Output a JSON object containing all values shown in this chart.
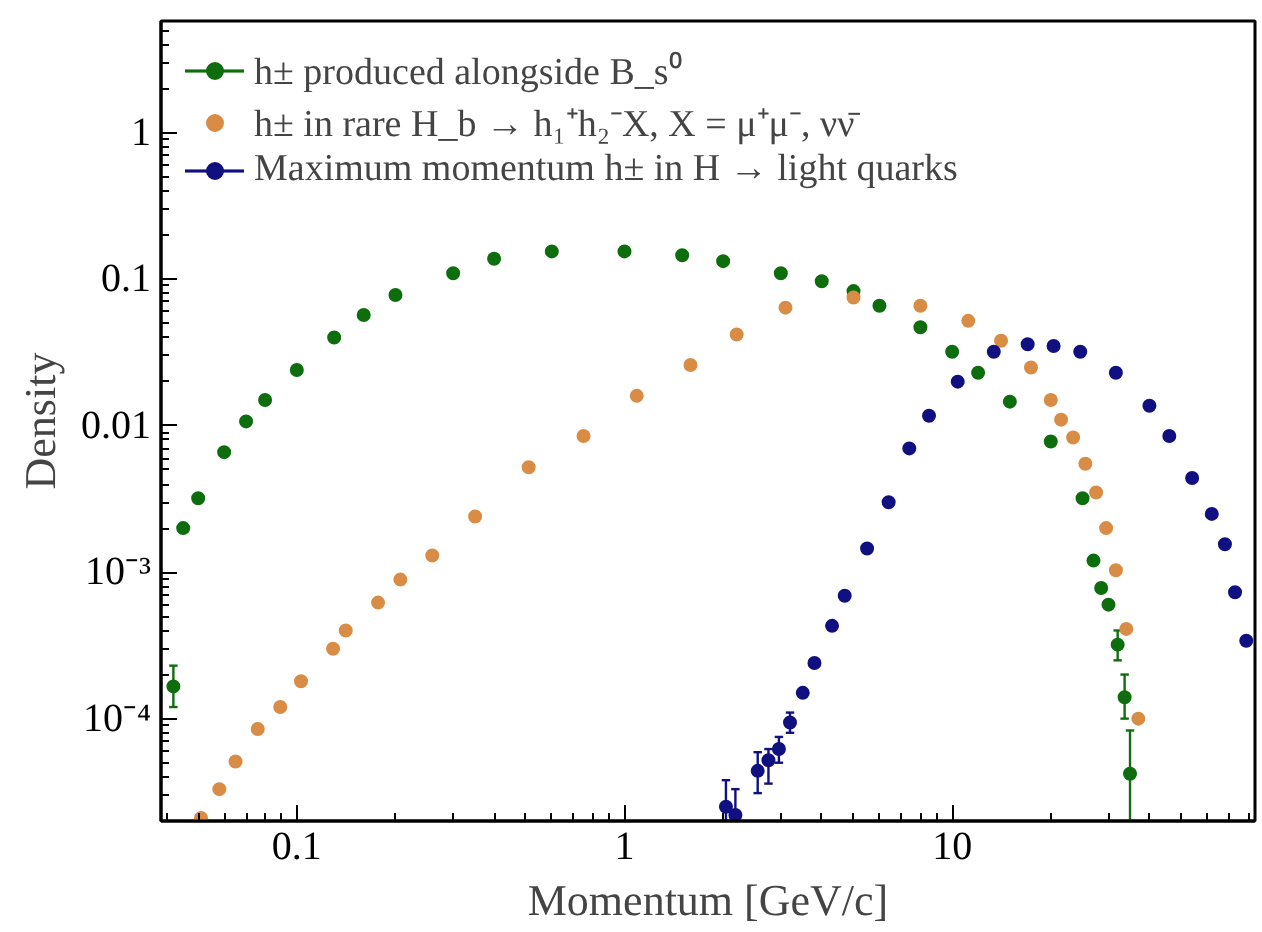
{
  "chart_data": {
    "type": "scatter",
    "xlabel": "Momentum [GeV/c]",
    "ylabel": "Density",
    "log": "xy",
    "legend": "top left",
    "marker": "circle",
    "grid": false,
    "xlim": [
      0.0385,
      84
    ],
    "ylim": [
      2e-05,
      5.8
    ],
    "xticks": [
      0.1,
      1,
      10
    ],
    "yticks": [
      {
        "value": 0.0001,
        "label": "10⁻⁴"
      },
      {
        "value": 0.001,
        "label": "10⁻³"
      },
      0.01,
      0.1,
      1
    ],
    "series": [
      {
        "name": "h± produced alongside B_s⁰",
        "color": "#0e6e0e",
        "x": [
          0.042,
          0.045,
          0.05,
          0.06,
          0.07,
          0.08,
          0.1,
          0.13,
          0.16,
          0.2,
          0.3,
          0.4,
          0.6,
          1.0,
          1.5,
          2,
          3,
          4,
          5,
          6,
          8,
          10,
          12,
          15,
          20,
          25,
          27,
          28.5,
          30,
          32,
          33.6,
          34.9
        ],
        "values": [
          0.000166,
          0.002,
          0.0032,
          0.0066,
          0.0107,
          0.015,
          0.024,
          0.04,
          0.057,
          0.078,
          0.11,
          0.138,
          0.155,
          0.155,
          0.146,
          0.133,
          0.11,
          0.097,
          0.083,
          0.066,
          0.047,
          0.032,
          0.023,
          0.0146,
          0.0078,
          0.0032,
          0.0012,
          0.00078,
          0.0006,
          0.00032,
          0.00014,
          4.2e-05
        ],
        "errors": [
          [
            0.00012,
            0.00023
          ],
          null,
          null,
          null,
          null,
          null,
          null,
          null,
          null,
          null,
          null,
          null,
          null,
          null,
          null,
          null,
          null,
          null,
          null,
          null,
          null,
          null,
          null,
          null,
          null,
          null,
          null,
          null,
          null,
          [
            0.00025,
            0.0004
          ],
          [
            0.0001,
            0.0002
          ],
          [
            2e-05,
            8.3e-05
          ]
        ]
      },
      {
        "name": "h± in rare H_b → h₁⁺h₂⁻X, X = μ⁺μ⁻, νν̄",
        "color": "#d98c45",
        "x": [
          0.051,
          0.058,
          0.065,
          0.076,
          0.089,
          0.103,
          0.129,
          0.141,
          0.177,
          0.207,
          0.259,
          0.35,
          0.51,
          0.75,
          1.09,
          1.59,
          2.2,
          3.1,
          5.0,
          8.0,
          11.2,
          14.1,
          17.4,
          20,
          21.5,
          23.4,
          25.5,
          27.5,
          29.5,
          31.6,
          34,
          37
        ],
        "values": [
          2.1e-05,
          3.3e-05,
          5.1e-05,
          8.5e-05,
          0.00012,
          0.00018,
          0.0003,
          0.0004,
          0.00062,
          0.00089,
          0.0013,
          0.0024,
          0.0052,
          0.0085,
          0.016,
          0.026,
          0.042,
          0.064,
          0.075,
          0.066,
          0.052,
          0.038,
          0.025,
          0.015,
          0.011,
          0.0083,
          0.0055,
          0.0035,
          0.002,
          0.00103,
          0.00041,
          0.0001
        ]
      },
      {
        "name": "Maximum momentum h± in H → light quarks",
        "color": "#101080",
        "x": [
          2.04,
          2.18,
          2.55,
          2.75,
          2.96,
          3.2,
          3.5,
          3.8,
          4.3,
          4.7,
          5.5,
          6.4,
          7.4,
          8.5,
          10.4,
          13.4,
          17.0,
          20.4,
          24.6,
          31.6,
          40,
          46,
          54,
          62,
          68,
          73,
          79
        ],
        "values": [
          2.5e-05,
          2.2e-05,
          4.4e-05,
          5.2e-05,
          6.2e-05,
          9.4e-05,
          0.00015,
          0.00024,
          0.00043,
          0.00069,
          0.00145,
          0.003,
          0.007,
          0.0117,
          0.02,
          0.032,
          0.036,
          0.035,
          0.032,
          0.023,
          0.0137,
          0.0085,
          0.0044,
          0.0025,
          0.00155,
          0.00073,
          0.00034
        ],
        "errors": [
          [
            2e-05,
            3.8e-05
          ],
          [
            2e-05,
            3.3e-05
          ],
          [
            3.1e-05,
            5.9e-05
          ],
          [
            3.6e-05,
            6.2e-05
          ],
          [
            5e-05,
            7.5e-05
          ],
          [
            8e-05,
            0.00011
          ],
          null,
          null,
          null,
          null,
          null,
          null,
          null,
          null,
          null,
          null,
          null,
          null,
          null,
          null,
          null,
          null,
          null,
          null,
          null,
          null,
          null
        ]
      }
    ]
  }
}
